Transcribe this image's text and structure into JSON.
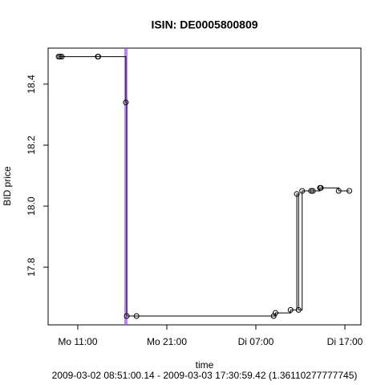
{
  "chart_data": {
    "type": "step",
    "title": "ISIN: DE0005800809",
    "xlabel": "time",
    "ylabel": "BID price",
    "subtitle": "2009-03-02 08:51:00.14 - 2009-03-03 17:30:59.42 (1.36110277777745)",
    "x": [
      8.85,
      9.0,
      9.2,
      13.25,
      13.3,
      16.4,
      16.5,
      17.6,
      33.0,
      33.2,
      34.9,
      35.6,
      35.8,
      36.2,
      37.2,
      37.4,
      38.2,
      38.3,
      40.3,
      41.5
    ],
    "y": [
      18.49,
      18.49,
      18.49,
      18.49,
      18.49,
      18.34,
      17.64,
      17.64,
      17.64,
      17.65,
      17.66,
      18.04,
      17.66,
      18.05,
      18.05,
      18.05,
      18.06,
      18.06,
      18.05,
      18.05
    ],
    "color": "#000000",
    "vline": {
      "x": 16.4,
      "color": "#9b4dff"
    },
    "xlim": [
      7.67,
      42.8
    ],
    "ylim": [
      17.611,
      18.518
    ],
    "xticks": [
      {
        "value": 11,
        "label": "Mo 11:00"
      },
      {
        "value": 21,
        "label": "Mo 21:00"
      },
      {
        "value": 31,
        "label": "Di 07:00"
      },
      {
        "value": 41,
        "label": "Di 17:00"
      }
    ],
    "yticks": [
      17.8,
      {
        "value": 18,
        "label": "18.0"
      },
      18.2,
      18.4
    ]
  }
}
